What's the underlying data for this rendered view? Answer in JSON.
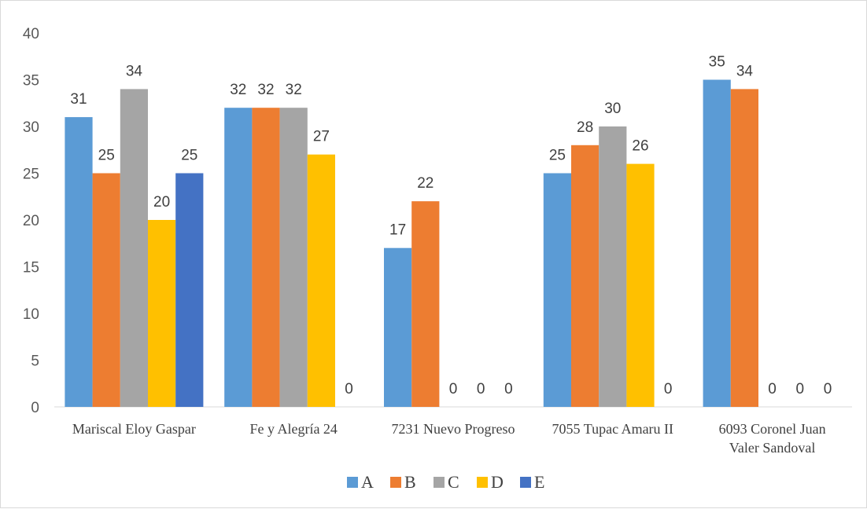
{
  "chart_data": {
    "type": "bar",
    "categories": [
      [
        "Mariscal Eloy Gaspar"
      ],
      [
        "Fe y Alegría 24"
      ],
      [
        "7231 Nuevo Progreso"
      ],
      [
        "7055 Tupac Amaru II"
      ],
      [
        "6093 Coronel Juan",
        "Valer Sandoval"
      ]
    ],
    "series": [
      {
        "name": "A",
        "color": "#5B9BD5",
        "values": [
          31,
          32,
          17,
          25,
          35
        ]
      },
      {
        "name": "B",
        "color": "#ED7D31",
        "values": [
          25,
          32,
          22,
          28,
          34
        ]
      },
      {
        "name": "C",
        "color": "#A5A5A5",
        "values": [
          34,
          32,
          0,
          30,
          0
        ]
      },
      {
        "name": "D",
        "color": "#FFC000",
        "values": [
          20,
          27,
          0,
          26,
          0
        ]
      },
      {
        "name": "E",
        "color": "#4472C4",
        "values": [
          25,
          0,
          0,
          0,
          0
        ]
      }
    ],
    "ylim": [
      0,
      40
    ],
    "yticks": [
      0,
      5,
      10,
      15,
      20,
      25,
      30,
      35,
      40
    ],
    "grid": false,
    "legend_position": "bottom",
    "title": "",
    "xlabel": "",
    "ylabel": ""
  }
}
